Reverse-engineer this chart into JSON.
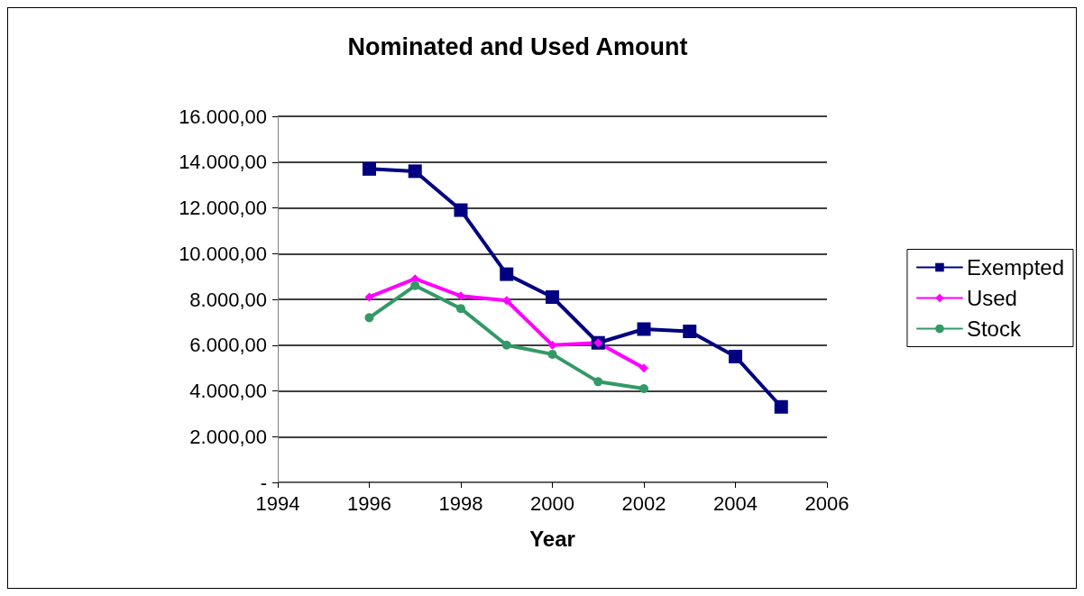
{
  "chart_data": {
    "type": "line",
    "title": "Nominated and Used Amount",
    "xlabel": "Year",
    "x": [
      1996,
      1997,
      1998,
      1999,
      2000,
      2001,
      2002,
      2003,
      2004,
      2005
    ],
    "series": [
      {
        "name": "Exempted",
        "color": "#000080",
        "marker": "square",
        "values": [
          13700,
          13600,
          11900,
          9100,
          8100,
          6100,
          6700,
          6600,
          5500,
          3300
        ]
      },
      {
        "name": "Used",
        "color": "#ff00ff",
        "marker": "diamond",
        "values": [
          8100,
          8900,
          8150,
          7950,
          6000,
          6100,
          5000,
          null,
          null,
          null
        ]
      },
      {
        "name": "Stock",
        "color": "#339966",
        "marker": "circle",
        "values": [
          7200,
          8600,
          7600,
          6000,
          5600,
          4400,
          4100,
          null,
          null,
          null
        ]
      }
    ],
    "xlim": [
      1994,
      2006
    ],
    "xticks": [
      1994,
      1996,
      1998,
      2000,
      2002,
      2004,
      2006
    ],
    "ylim": [
      0,
      16000
    ],
    "yticks": [
      {
        "value": 0,
        "label": "-"
      },
      {
        "value": 2000,
        "label": "2.000,00"
      },
      {
        "value": 4000,
        "label": "4.000,00"
      },
      {
        "value": 6000,
        "label": "6.000,00"
      },
      {
        "value": 8000,
        "label": "8.000,00"
      },
      {
        "value": 10000,
        "label": "10.000,00"
      },
      {
        "value": 12000,
        "label": "12.000,00"
      },
      {
        "value": 14000,
        "label": "14.000,00"
      },
      {
        "value": 16000,
        "label": "16.000,00"
      }
    ],
    "grid": "y",
    "legend": "right",
    "line_style": "solid"
  }
}
